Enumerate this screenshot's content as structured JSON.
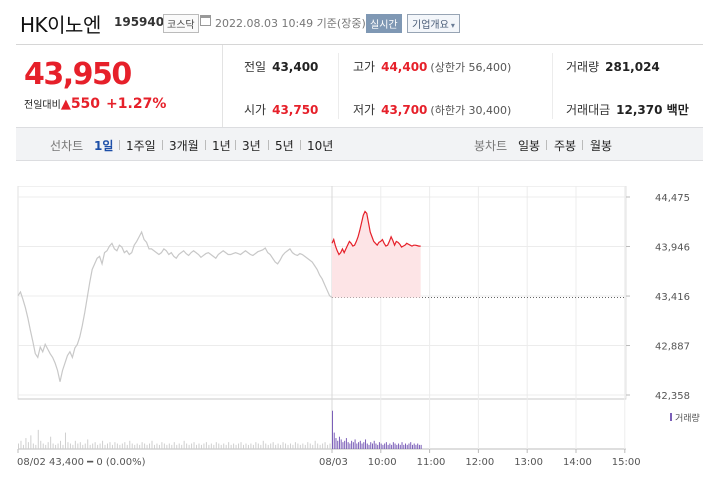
{
  "header": {
    "stock_name": "HK이노엔",
    "stock_code": "195940",
    "market_badge": "코스닥",
    "calendar_icon": "calendar-icon",
    "timestamp": "2022.08.03 10:49 기준(장중)",
    "realtime_badge": "실시간",
    "company_info_button": "기업개요"
  },
  "quote": {
    "price": "43,950",
    "change_label": "전일대비",
    "change_value": "550",
    "change_percent": "+1.27%",
    "prev_close_label": "전일",
    "prev_close": "43,400",
    "open_label": "시가",
    "open": "43,750",
    "high_label": "고가",
    "high": "44,400",
    "upper_limit": "(상한가 56,400)",
    "low_label": "저가",
    "low": "43,700",
    "lower_limit": "(하한가 30,400)",
    "volume_label": "거래량",
    "volume": "281,024",
    "amount_label": "거래대금",
    "amount": "12,370 백만",
    "up_color": "#e6202a"
  },
  "periods": {
    "line_chart_label": "선차트",
    "items": [
      "1일",
      "1주일",
      "3개월",
      "1년",
      "3년",
      "5년",
      "10년"
    ],
    "selected": "1일",
    "candle_chart_label": "봉차트",
    "candle_items": [
      "일봉",
      "주봉",
      "월봉"
    ]
  },
  "chart_data": {
    "type": "line",
    "title": "",
    "y_ticks": [
      44475,
      43946,
      43416,
      42887,
      42358
    ],
    "y_tick_labels": [
      "44,475",
      "43,946",
      "43,416",
      "42,887",
      "42,358"
    ],
    "ylim": [
      42358,
      44475
    ],
    "x_ticks": [
      "08/02",
      "08/03",
      "10:00",
      "11:00",
      "12:00",
      "13:00",
      "14:00",
      "15:00"
    ],
    "prev_close": 43400,
    "prev_day_label": "08/02  43,400 ━ 0 (0.00%)",
    "volume_legend": "거래량",
    "series": [
      {
        "name": "08/02",
        "color": "#c8c8c8",
        "values": [
          43420,
          43460,
          43380,
          43290,
          43180,
          43050,
          42930,
          42800,
          42760,
          42870,
          42820,
          42900,
          42850,
          42800,
          42760,
          42700,
          42620,
          42500,
          42620,
          42700,
          42780,
          42820,
          42760,
          42860,
          42900,
          42980,
          43100,
          43240,
          43400,
          43560,
          43700,
          43760,
          43820,
          43840,
          43760,
          43880,
          43900,
          43950,
          43980,
          43920,
          43900,
          43960,
          43940,
          43880,
          43900,
          43860,
          43880,
          43960,
          44000,
          44050,
          44100,
          44020,
          43990,
          43920,
          43920,
          43900,
          43880,
          43860,
          43880,
          43920,
          43900,
          43860,
          43880,
          43840,
          43820,
          43860,
          43880,
          43900,
          43870,
          43850,
          43880,
          43900,
          43880,
          43860,
          43830,
          43850,
          43870,
          43880,
          43860,
          43840,
          43820,
          43860,
          43880,
          43900,
          43880,
          43860,
          43860,
          43870,
          43880,
          43870,
          43860,
          43880,
          43900,
          43880,
          43860,
          43850,
          43870,
          43890,
          43900,
          43910,
          43930,
          43880,
          43860,
          43820,
          43780,
          43760,
          43800,
          43850,
          43880,
          43900,
          43920,
          43880,
          43860,
          43850,
          43870,
          43860,
          43840,
          43820,
          43800,
          43780,
          43740,
          43700,
          43640,
          43600,
          43540,
          43480,
          43420,
          43400
        ]
      },
      {
        "name": "08/03",
        "color": "#e6202a",
        "values": [
          43980,
          44020,
          43950,
          43900,
          43860,
          43880,
          43920,
          43880,
          43920,
          43960,
          44000,
          43980,
          43950,
          43960,
          44000,
          44050,
          44120,
          44200,
          44280,
          44320,
          44300,
          44200,
          44100,
          44050,
          44000,
          43980,
          43960,
          43990,
          44000,
          44020,
          43980,
          43950,
          43960,
          44000,
          44050,
          44010,
          43960,
          44000,
          43990,
          43970,
          43940,
          43950,
          43960,
          43980,
          43970,
          43960,
          43950,
          43960,
          43960,
          43955,
          43950,
          43950
        ]
      }
    ],
    "volume": {
      "prev_day": [
        4,
        6,
        3,
        8,
        5,
        10,
        4,
        3,
        14,
        6,
        4,
        3,
        5,
        9,
        4,
        3,
        4,
        6,
        3,
        12,
        5,
        4,
        3,
        6,
        4,
        5,
        3,
        4,
        7,
        3,
        4,
        5,
        3,
        4,
        6,
        3,
        4,
        5,
        3,
        5,
        4,
        3,
        4,
        5,
        3,
        6,
        4,
        3,
        4,
        3,
        5,
        4,
        3,
        4,
        6,
        3,
        4,
        3,
        5,
        4,
        3,
        4,
        3,
        5,
        3,
        4,
        3,
        6,
        4,
        3,
        4,
        5,
        3,
        4,
        3,
        4,
        5,
        3,
        4,
        3,
        5,
        4,
        3,
        4,
        3,
        5,
        3,
        4,
        3,
        4,
        5,
        3,
        4,
        3,
        4,
        3,
        5,
        4,
        3,
        6,
        4,
        3,
        4,
        5,
        3,
        4,
        3,
        5,
        4,
        3,
        4,
        3,
        5,
        4,
        3,
        4,
        3,
        5,
        4,
        3,
        6,
        4,
        3,
        4,
        5,
        3,
        4
      ],
      "today": [
        28,
        12,
        8,
        6,
        9,
        7,
        5,
        6,
        8,
        5,
        4,
        6,
        5,
        7,
        4,
        5,
        6,
        4,
        5,
        7,
        4,
        3,
        5,
        4,
        6,
        4,
        3,
        5,
        4,
        3,
        4,
        5,
        3,
        4,
        3,
        5,
        4,
        3,
        4,
        3,
        5,
        3,
        4,
        3,
        4,
        5,
        3,
        4,
        3,
        4,
        3,
        3
      ]
    }
  }
}
